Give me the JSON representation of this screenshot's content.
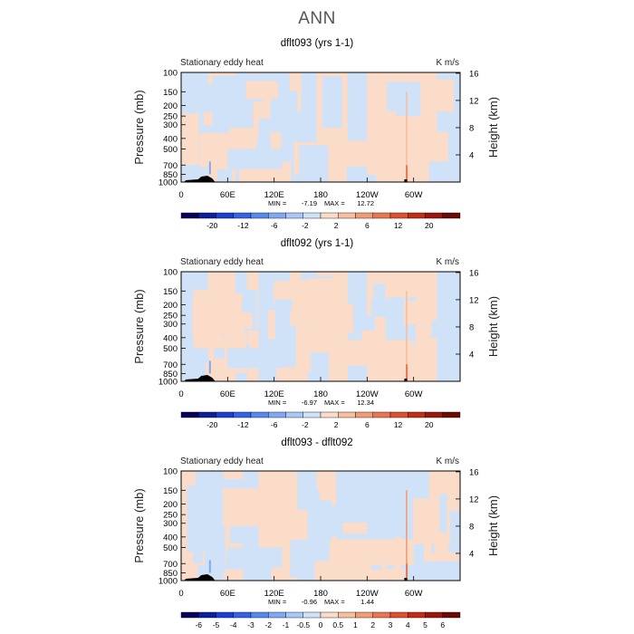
{
  "figure": {
    "title": "ANN",
    "ylabel_left": "Pressure (mb)",
    "ylabel_right": "Height (km)",
    "left_label": "Stationary eddy heat",
    "units": "K m/s"
  },
  "chart_data": [
    {
      "type": "heatmap",
      "title": "dflt093 (yrs 1-1)",
      "xlabel": "",
      "ylabel": "Pressure (mb)",
      "xtick_labels": [
        "0",
        "60E",
        "120E",
        "180",
        "120W",
        "60W"
      ],
      "ytick_labels": [
        "100",
        "150",
        "200",
        "250",
        "300",
        "400",
        "500",
        "700",
        "850",
        "1000"
      ],
      "ytick_right_labels": [
        "16",
        "12",
        "8",
        "4"
      ],
      "ylim": [
        1000,
        100
      ],
      "y_scale": "log",
      "min": -7.19,
      "max": 12.72,
      "min_label": "MIN =",
      "max_label": "MAX =",
      "colorbar_levels": [
        "-20",
        "-12",
        "-6",
        "-2",
        "2",
        "6",
        "12",
        "20"
      ],
      "dominant_colors": [
        "#cfe2f7",
        "#fbdcc9"
      ]
    },
    {
      "type": "heatmap",
      "title": "dflt092 (yrs 1-1)",
      "xlabel": "",
      "ylabel": "Pressure (mb)",
      "xtick_labels": [
        "0",
        "60E",
        "120E",
        "180",
        "120W",
        "60W"
      ],
      "ytick_labels": [
        "100",
        "150",
        "200",
        "250",
        "300",
        "400",
        "500",
        "700",
        "850",
        "1000"
      ],
      "ytick_right_labels": [
        "16",
        "12",
        "8",
        "4"
      ],
      "ylim": [
        1000,
        100
      ],
      "y_scale": "log",
      "min": -6.97,
      "max": 12.34,
      "min_label": "MIN =",
      "max_label": "MAX =",
      "colorbar_levels": [
        "-20",
        "-12",
        "-6",
        "-2",
        "2",
        "6",
        "12",
        "20"
      ],
      "dominant_colors": [
        "#cfe2f7",
        "#fbdcc9"
      ]
    },
    {
      "type": "heatmap",
      "title": "dflt093 - dflt092",
      "xlabel": "",
      "ylabel": "Pressure (mb)",
      "xtick_labels": [
        "0",
        "60E",
        "120E",
        "180",
        "120W",
        "60W"
      ],
      "ytick_labels": [
        "100",
        "150",
        "200",
        "250",
        "300",
        "400",
        "500",
        "700",
        "850",
        "1000"
      ],
      "ytick_right_labels": [
        "16",
        "12",
        "8",
        "4"
      ],
      "ylim": [
        1000,
        100
      ],
      "y_scale": "log",
      "min": -0.96,
      "max": 1.44,
      "min_label": "MIN =",
      "max_label": "MAX =",
      "colorbar_levels": [
        "-6",
        "-5",
        "-4",
        "-3",
        "-2",
        "-1",
        "-0.5",
        "0",
        "0.5",
        "1",
        "2",
        "3",
        "4",
        "5",
        "6"
      ],
      "dominant_colors": [
        "#cfe2f7",
        "#fbdcc9"
      ]
    }
  ],
  "colorbar_palette": [
    "#08005a",
    "#0d1f9a",
    "#1b3fd0",
    "#3463e6",
    "#5689ee",
    "#7fa9f3",
    "#a9c8f7",
    "#cfe2f7",
    "#fbdcc9",
    "#f7bea0",
    "#f29c77",
    "#ea7650",
    "#dd5130",
    "#c12e14",
    "#98180b",
    "#6a0a05"
  ]
}
